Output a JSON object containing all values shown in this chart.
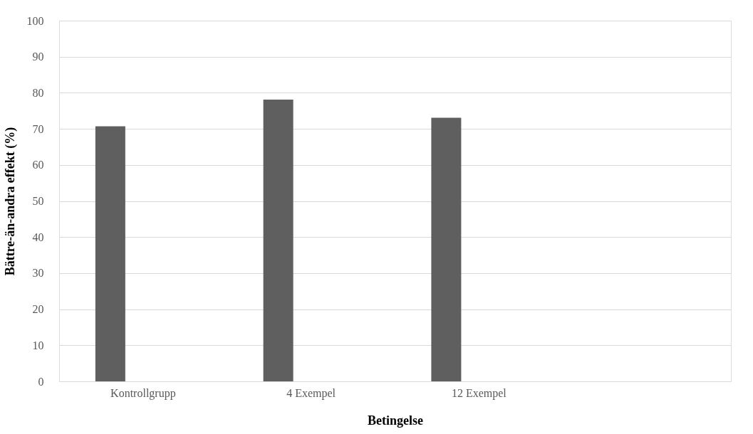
{
  "chart_data": {
    "type": "bar",
    "xlabel": "Betingelse",
    "ylabel": "Bättre-än-andra effekt (%)",
    "categories": [
      "Kontrollgrupp",
      "4 Exempel",
      "12 Exempel",
      null
    ],
    "values": [
      70.7,
      78.1,
      73.1,
      null
    ],
    "color": "#5f5f5f",
    "ylim": [
      0,
      100
    ],
    "yticks": [
      0,
      10,
      20,
      30,
      40,
      50,
      60,
      70,
      80,
      90,
      100
    ],
    "grid": "y"
  }
}
